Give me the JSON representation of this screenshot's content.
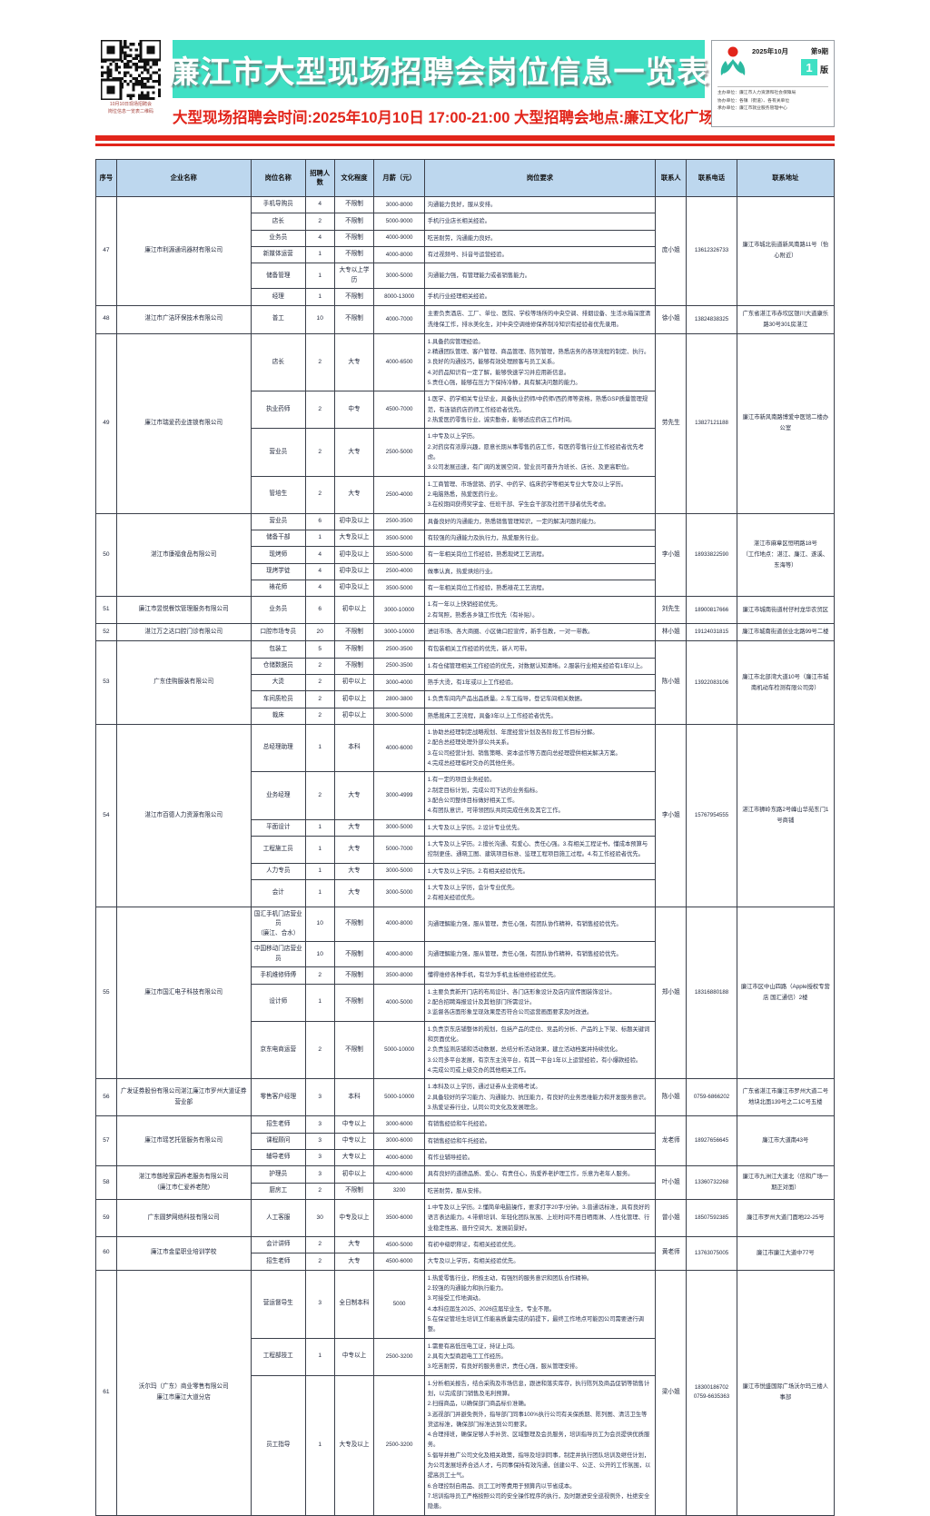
{
  "masthead": {
    "qr_caption": "10月10日现场招聘会\n岗位信息一览表二维码",
    "title": "廉江市大型现场招聘会岗位信息一览表",
    "subtitle": "大型现场招聘会时间:2025年10月10日 17:00-21:00 大型招聘会地点:廉江文化广场",
    "issue": {
      "date": "2025年10月",
      "number": "第9期",
      "page_number": "1",
      "page_label": "版",
      "org_lines": "主办单位：廉江市人力资源和社会保障局\n协办单位：各镇（街道）、各有关单位\n承办单位：廉江市就业服务管理中心"
    },
    "colors": {
      "banner_bg": "#3FE0C4",
      "accent_red": "#E2251B",
      "header_row_bg": "#BDD7EE",
      "logo_teal": "#2BB9A0",
      "logo_red": "#E2251B"
    }
  },
  "table": {
    "columns": [
      "序号",
      "企业名称",
      "岗位名称",
      "招聘人数",
      "文化程度",
      "月薪（元）",
      "岗位要求",
      "联系人",
      "联系电话",
      "联系地址"
    ],
    "companies": [
      {
        "seq": "47",
        "name": "廉江市利源通讯器材有限公司",
        "contact": "庞小姐",
        "phone": "13612326733",
        "address": "廉江市城北街道新风南路11号（怡心附近）",
        "positions": [
          {
            "title": "手机导购员",
            "count": "4",
            "edu": "不限制",
            "salary": "3000-8000",
            "req": "沟通能力良好，服从安排。"
          },
          {
            "title": "店长",
            "count": "2",
            "edu": "不限制",
            "salary": "5000-9000",
            "req": "手机行业店长相关经验。"
          },
          {
            "title": "业务员",
            "count": "4",
            "edu": "不限制",
            "salary": "4000-9000",
            "req": "吃苦耐劳，沟通能力良好。"
          },
          {
            "title": "新媒体运营",
            "count": "1",
            "edu": "不限制",
            "salary": "4000-8000",
            "req": "有过视频号、抖音号运营经验。"
          },
          {
            "title": "储备管理",
            "count": "1",
            "edu": "大专以上学历",
            "salary": "3000-5000",
            "req": "沟通能力强，有管理能力或者销售能力。"
          },
          {
            "title": "经理",
            "count": "1",
            "edu": "不限制",
            "salary": "8000-13000",
            "req": "手机行业经理相关经验。"
          }
        ]
      },
      {
        "seq": "48",
        "name": "湛江市广洁环保技术有限公司",
        "contact": "徐小姐",
        "phone": "13824838325",
        "address": "广东省湛江市赤坎区银川大道康乐路30号301房湛江",
        "positions": [
          {
            "title": "普工",
            "count": "10",
            "edu": "不限制",
            "salary": "4000-7000",
            "req": "主要负责酒店、工厂、单位、医院、学校等场所的中央空调、排烟设备、生活水箱深度清洗维保工作，排水美化生，对中央空调维修保养制冷知识有经验者优先录用。"
          }
        ]
      },
      {
        "seq": "49",
        "name": "廉江市瑞爱药业连锁有限公司",
        "contact": "劳先生",
        "phone": "13827121188",
        "address": "廉江市新风南路博爱中医馆二楼办公室",
        "positions": [
          {
            "title": "店长",
            "count": "2",
            "edu": "大专",
            "salary": "4000-6500",
            "req": "1.具备药房管理经验。\n2.精通团队管理、客户管理、商品管理、陈列管理，熟悉店务的各项流程的制定、执行。\n3.良好的沟通技巧，能够有效处理顾客与员工关系。\n4.对药品知识有一定了解，能够快速学习并应用新信息。\n5.责任心强，能够在压力下保持冷静，具有解决问题的能力。"
          },
          {
            "title": "执业药师",
            "count": "2",
            "edu": "中专",
            "salary": "4500-7000",
            "req": "1.医学、药学相关专业毕业，具备执业药师/中药师/西药师等资格，熟悉GSP质量管理规范，有连锁药店药师工作经验者优先。\n2.热爱医药零售行业，诚实勤奋，能够适应药店工作时间。"
          },
          {
            "title": "营业员",
            "count": "2",
            "edu": "大专",
            "salary": "2500-5000",
            "req": "1.中专及以上学历。\n2.对药房有浓厚兴趣，愿意长期从事零售药店工作，有医药零售行业工作经验者优先考虑。\n3.公司发展迅速，有广阔的发展空间，营业员可晋升为班长、店长、及更高职位。"
          },
          {
            "title": "管培生",
            "count": "2",
            "edu": "大专",
            "salary": "2500-4000",
            "req": "1.工商管理、市场营销、药学、中药学、临床药学等相关专业大专及以上学历。\n2.电脑熟悉，热爱医药行业。\n3.在校期间获得奖学金、任班干部、学生会干部及社团干部者优先考虑。"
          }
        ]
      },
      {
        "seq": "50",
        "name": "湛江市康福食品有限公司",
        "contact": "李小姐",
        "phone": "18933822590",
        "address": "湛江市麻章区恒明路18号\n（工作地点：湛江、廉江、遂溪、东海等）",
        "positions": [
          {
            "title": "营业员",
            "count": "6",
            "edu": "初中及以上",
            "salary": "2500-3500",
            "req": "具备良好的沟通能力，熟悉销售管理知识，一定的解决问题的能力。"
          },
          {
            "title": "储备干部",
            "count": "1",
            "edu": "大专及以上",
            "salary": "3500-5000",
            "req": "有较强的沟通能力及执行力，热爱服务行业。"
          },
          {
            "title": "现烤师",
            "count": "4",
            "edu": "初中及以上",
            "salary": "3500-5000",
            "req": "有一年相关岗位工作经验，熟悉现烤工艺流程。"
          },
          {
            "title": "现烤学徒",
            "count": "4",
            "edu": "初中及以上",
            "salary": "2500-4000",
            "req": "做事认真，热爱烘焙行业。"
          },
          {
            "title": "裱花师",
            "count": "4",
            "edu": "初中及以上",
            "salary": "3500-5000",
            "req": "有一年相关岗位工作经验，熟悉裱花工艺流程。"
          }
        ]
      },
      {
        "seq": "51",
        "name": "廉江市昱悦餐饮管理服务有限公司",
        "contact": "刘先生",
        "phone": "18900817666",
        "address": "廉江市城南街道村仔村龙华农贸区",
        "positions": [
          {
            "title": "业务员",
            "count": "6",
            "edu": "初中以上",
            "salary": "3000-10000",
            "req": "1.有一年以上快销经验优先。\n2.有驾照，熟悉各乡镇工作优先（有补贴）。"
          }
        ]
      },
      {
        "seq": "52",
        "name": "湛江万之达口腔门诊有限公司",
        "contact": "林小姐",
        "phone": "19124031815",
        "address": "廉江市城南街道创业北路99号二楼",
        "positions": [
          {
            "title": "口腔市场专员",
            "count": "20",
            "edu": "不限制",
            "salary": "3000-10000",
            "req": "进驻市场、各大商圈、小区做口腔宣传，新手包教，一对一带教。"
          }
        ]
      },
      {
        "seq": "53",
        "name": "广东佳购服装有限公司",
        "contact": "陈小姐",
        "phone": "13922083106",
        "address": "廉江市北部湾大道10号（廉江市城南机动车检测有限公司旁）",
        "positions": [
          {
            "title": "包装工",
            "count": "5",
            "edu": "不限制",
            "salary": "2500-3500",
            "req": "有包装相关工作经验的优先，新人可带。"
          },
          {
            "title": "仓储数据员",
            "count": "2",
            "edu": "不限制",
            "salary": "2500-3500",
            "req": "1.有仓储管理相关工作经验的优先，对数据认知清晰。2.服装行业相关经验有1年以上。"
          },
          {
            "title": "大烫",
            "count": "2",
            "edu": "初中以上",
            "salary": "3000-4000",
            "req": "熟手大烫，有1年或以上工作经验。"
          },
          {
            "title": "车间质检员",
            "count": "2",
            "edu": "初中以上",
            "salary": "2800-3800",
            "req": "1.负责车间内产品出品质量。2.车工指导，登记车间相关数据。"
          },
          {
            "title": "裁床",
            "count": "2",
            "edu": "初中以上",
            "salary": "3000-5000",
            "req": "熟悉裁床工艺流程，具备3年以上工作经验者优先。"
          }
        ]
      },
      {
        "seq": "54",
        "name": "湛江市百德人力资源有限公司",
        "contact": "李小姐",
        "phone": "15767954555",
        "address": "湛江市狮岭东路2号峰山华苑东门1号商铺",
        "positions": [
          {
            "title": "总经理助理",
            "count": "1",
            "edu": "本科",
            "salary": "4000-6000",
            "req": "1.协助总经理制定战略规划、年度经营计划及各阶段工作目标分解。\n2.配合总经理处理外部公共关系。\n3.在公司经营计划、销售策略、资本运作等方面向总经理提供相关解决方案。\n4.完成总经理临时交办的其他任务。"
          },
          {
            "title": "业务经理",
            "count": "2",
            "edu": "大专",
            "salary": "3000-4999",
            "req": "1.有一定的项目业务经验。\n2.制定目标计划，完成公司下达的业务指标。\n3.配合公司整体目标做好相关工作。\n4.有团队意识，可带领团队共同完成任务及其它工作。"
          },
          {
            "title": "平面设计",
            "count": "1",
            "edu": "大专",
            "salary": "3000-5000",
            "req": "1.大专及以上学历。2.设计专业优先。"
          },
          {
            "title": "工程施工员",
            "count": "1",
            "edu": "大专",
            "salary": "5000-7000",
            "req": "1.大专及以上学历。2.擅长沟通、有爱心、责任心强。3.有相关工程证书，懂成本预算与控制更佳、通晓工图、建筑项目标准、监理工程项目施工过程。4.有工作经验者优先。"
          },
          {
            "title": "人力专员",
            "count": "1",
            "edu": "大专",
            "salary": "3000-5000",
            "req": "1.大专及以上学历。2.有相关经验优先。"
          },
          {
            "title": "会计",
            "count": "1",
            "edu": "大专",
            "salary": "3000-5000",
            "req": "1.大专及以上学历，会计专业优先。\n2.有相关经验优先。"
          }
        ]
      },
      {
        "seq": "55",
        "name": "廉江市国汇电子科技有限公司",
        "contact": "郑小姐",
        "phone": "18316880188",
        "address": "廉江市区中山四路（Apple授权专营店 国汇通信）2楼",
        "positions": [
          {
            "title": "国汇手机门店营业员\n（廉江、合水）",
            "count": "10",
            "edu": "不限制",
            "salary": "4000-8000",
            "req": "沟通理解能力强，服从管理，责任心强，有团队协作精神，有销售经验优先。"
          },
          {
            "title": "中国移动门店营业员",
            "count": "10",
            "edu": "不限制",
            "salary": "4000-8000",
            "req": "沟通理解能力强，服从管理，责任心强，有团队协作精神，有销售经验优先。"
          },
          {
            "title": "手机维修师傅",
            "count": "2",
            "edu": "不限制",
            "salary": "3500-8000",
            "req": "懂得维修各种手机，有华为手机主板维修经验优先。"
          },
          {
            "title": "设计师",
            "count": "1",
            "edu": "不限制",
            "salary": "4000-5000",
            "req": "1.主要负责新开门店的布局设计、各门店形象设计及店内宣传图装饰设计。\n2.配合招聘海报设计及其他部门所需设计。\n3.监督各店面形象呈现效果是否符合公司运营画面要求及时改进。"
          },
          {
            "title": "京东电商运营",
            "count": "2",
            "edu": "不限制",
            "salary": "5000-10000",
            "req": "1.负责京东店铺整体的规划，包括产品的定位、竞品的分析、产品的上下架、标题关键词和页面优化。\n2.负责监测店铺和活动数据，总结分析活动效果，建立活动档案并持续优化。\n3.公司多平台发展，有京东主流平台，有其一平台1年以上运营经验，有小爆款经验。\n4.完成公司或上级交办的其他相关工作。"
          }
        ]
      },
      {
        "seq": "56",
        "name": "广发证券股份有限公司湛江廉江市罗州大道证券营业部",
        "contact": "陈小姐",
        "phone": "0759-6866202",
        "address": "广东省湛江市廉江市罗州大道二号地块北面139号之二1C号五楼",
        "positions": [
          {
            "title": "零售客户经理",
            "count": "3",
            "edu": "本科",
            "salary": "5000-10000",
            "req": "1.本科及以上学历，通过证券从业资格考试。\n2.具备较好的学习能力、沟通能力、抗压能力，有良好的业务思维能力和开发服务意识。\n3.热爱证券行业，认同公司文化及发展理念。"
          }
        ]
      },
      {
        "seq": "57",
        "name": "廉江市瑶艺托管服务有限公司",
        "contact": "龙老师",
        "phone": "18927656645",
        "address": "廉江市大道南43号",
        "positions": [
          {
            "title": "招生老师",
            "count": "3",
            "edu": "中专以上",
            "salary": "3000-6000",
            "req": "有销售经验和午托经验。"
          },
          {
            "title": "课程顾问",
            "count": "3",
            "edu": "中专以上",
            "salary": "3000-6000",
            "req": "有销售经验和午托经验。"
          },
          {
            "title": "辅导老师",
            "count": "3",
            "edu": "大专以上",
            "salary": "4000-6000",
            "req": "有作业辅导经验。"
          }
        ]
      },
      {
        "seq": "58",
        "name": "湛江市慈睦家园养老服务有限公司\n（廉江市仁爱养老院）",
        "contact": "叶小姐",
        "phone": "13360732268",
        "address": "廉江市九洲江大道北（信和广场一期正对面）",
        "positions": [
          {
            "title": "护理员",
            "count": "3",
            "edu": "初中以上",
            "salary": "4200-6000",
            "req": "具有良好的道德品质、爱心、有责任心，热爱养老护理工作，乐意为老年人服务。"
          },
          {
            "title": "厨房工",
            "count": "2",
            "edu": "不限制",
            "salary": "3200",
            "req": "吃苦耐劳，服从安排。"
          }
        ]
      },
      {
        "seq": "59",
        "name": "广东圆梦网络科技有限公司",
        "contact": "曾小姐",
        "phone": "18507592385",
        "address": "廉江市罗州大道门面地22-25号",
        "positions": [
          {
            "title": "人工客服",
            "count": "30",
            "edu": "中专及以上",
            "salary": "3500-6000",
            "req": "1.中专及以上学历。2.懂简单电脑操作，要求打字20字/分钟。3.普通话标准，具有良好的语言表达能力。4.带薪培训、年轻化团队氛围、上班时间不用日晒雨淋、人性化管理、行业稳定性高、晋升空间大、发展前景好。"
          }
        ]
      },
      {
        "seq": "60",
        "name": "廉江市金星职业培训学校",
        "contact": "黄老师",
        "phone": "13763075005",
        "address": "廉江市廉江大道中77号",
        "positions": [
          {
            "title": "会计讲师",
            "count": "2",
            "edu": "大专",
            "salary": "4500-5000",
            "req": "有初中级职称证，有相关经验优先。"
          },
          {
            "title": "招生老师",
            "count": "2",
            "edu": "大专",
            "salary": "4500-6000",
            "req": "大专及以上学历，有相关经验优先。"
          }
        ]
      },
      {
        "seq": "61",
        "name": "沃尔玛（广东）商业零售有限公司\n廉江市廉江大道分店",
        "contact": "梁小姐",
        "phone": "18300186702\n0759-6635363",
        "address": "廉江市悦盛国际广场沃尔玛三楼人事部",
        "positions": [
          {
            "title": "营运督导生",
            "count": "3",
            "edu": "全日制本科",
            "salary": "5000",
            "req": "1.热爱零售行业，积极主动，有强烈的服务意识和团队合作精神。\n2.较强的沟通能力和执行能力。\n3.可接受工作地调动。\n4.本科应届生2025、2026应届毕业生，专业不限。\n5.在保证管培生培训工作能高质量完成的前提下，最终工作地点可能因公司需要进行调整。"
          },
          {
            "title": "工程部技工",
            "count": "1",
            "edu": "中专以上",
            "salary": "2500-3200",
            "req": "1.需要有高低压电工证，持证上岗。\n2.具有大型商超电工工作经历。\n3.吃苦耐劳，有良好的服务意识，责任心强，服从管理安排。"
          },
          {
            "title": "员工指导",
            "count": "1",
            "edu": "大专及以上",
            "salary": "2500-3200",
            "req": "1.分析相关报告，结合采购及市场信息，跟进和落实库存，执行陈列及商品促销等销售计划，以完成部门销售及毛利预算。\n2.扫描商品，以确保部门商品标价准确。\n3.巡视部门并避免例外，指导部门同事100%执行公司有关保质期、陈列图、清洁卫生等货运标准，确保部门标准达到公司要求。\n4.合理排班，确保足够人手补货、区域整理及会员服务，培训指导员工为会员提供优质服务。\n5.倡导并推广公司文化及相关政策，指导及培训同事，制定并执行团队培训及继任计划，为公司发展培养合适人才，与同事保持有效沟通，创建公平、公正、公开的工作氛围，以提高员工士气。\n6.合理控制自用品、员工工时等费用于预算内以节省成本。\n7.培训指导员工严格按照公司的安全操作程序的执行，及时跟进安全巡视例外，杜绝安全隐患。"
          }
        ]
      }
    ]
  }
}
